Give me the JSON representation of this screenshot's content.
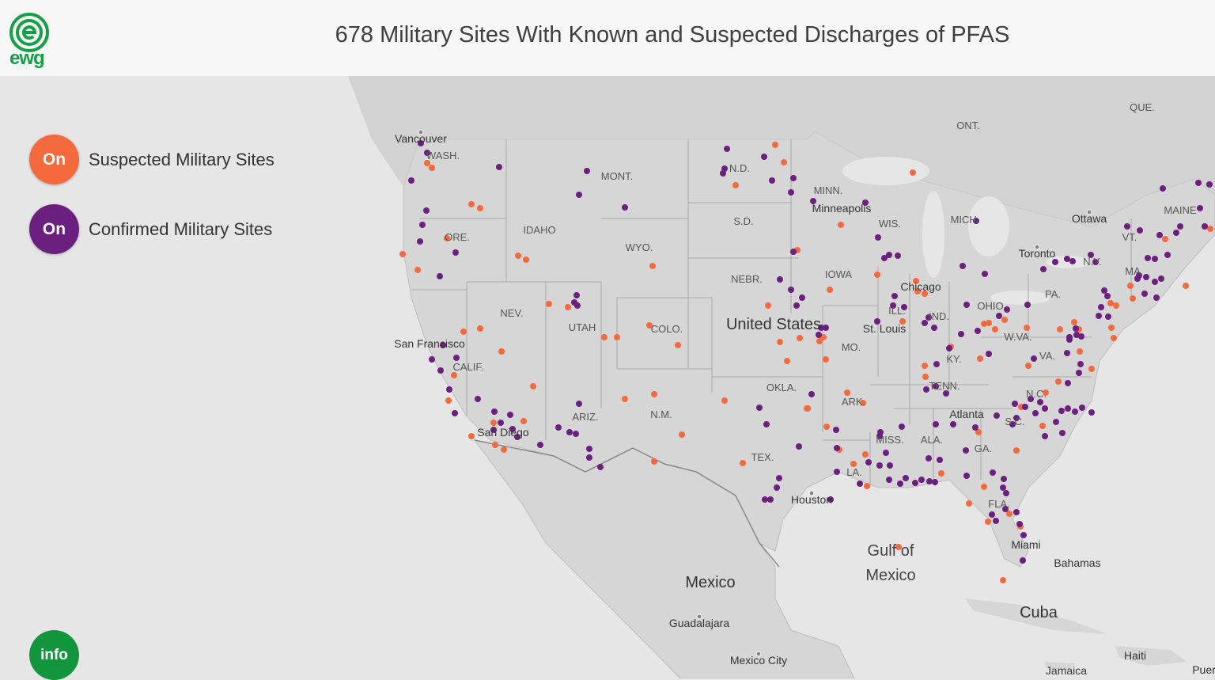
{
  "header": {
    "logo_text": "ewg",
    "title": "678 Military Sites With Known and Suspected Discharges of PFAS"
  },
  "legend": {
    "suspected": {
      "button": "On",
      "label": "Suspected Military Sites",
      "color": "#f46a3c"
    },
    "confirmed": {
      "button": "On",
      "label": "Confirmed Military Sites",
      "color": "#6b1f7e"
    }
  },
  "info_button": "info",
  "map": {
    "state_labels": [
      "WASH.",
      "ORE.",
      "CALIF.",
      "NEV.",
      "IDAHO",
      "MONT.",
      "WYO.",
      "UTAH",
      "ARIZ.",
      "COLO.",
      "N.M.",
      "N.D.",
      "S.D.",
      "NEBR.",
      "OKLA.",
      "TEX.",
      "MINN.",
      "IOWA",
      "MO.",
      "ARK.",
      "LA.",
      "WIS.",
      "ILL.",
      "MISS.",
      "MICH.",
      "IND.",
      "KY.",
      "TENN.",
      "ALA.",
      "GA.",
      "FLA.",
      "OHIO",
      "W.VA.",
      "VA.",
      "N.C.",
      "S.C.",
      "PA.",
      "N.Y.",
      "VT.",
      "MAINE",
      "MA",
      "ONT.",
      "QUE."
    ],
    "city_labels": [
      "Vancouver",
      "San Francisco",
      "San Diego",
      "Minneapolis",
      "Chicago",
      "St. Louis",
      "Houston",
      "Atlanta",
      "Miami",
      "Toronto",
      "Ottawa",
      "Guadalajara",
      "Mexico City",
      "Bahamas",
      "Haiti",
      "Jamaica",
      "Puer"
    ],
    "country_labels": [
      "United States",
      "Mexico",
      "Cuba"
    ],
    "water_label_line1": "Gulf of",
    "water_label_line2": "Mexico"
  }
}
